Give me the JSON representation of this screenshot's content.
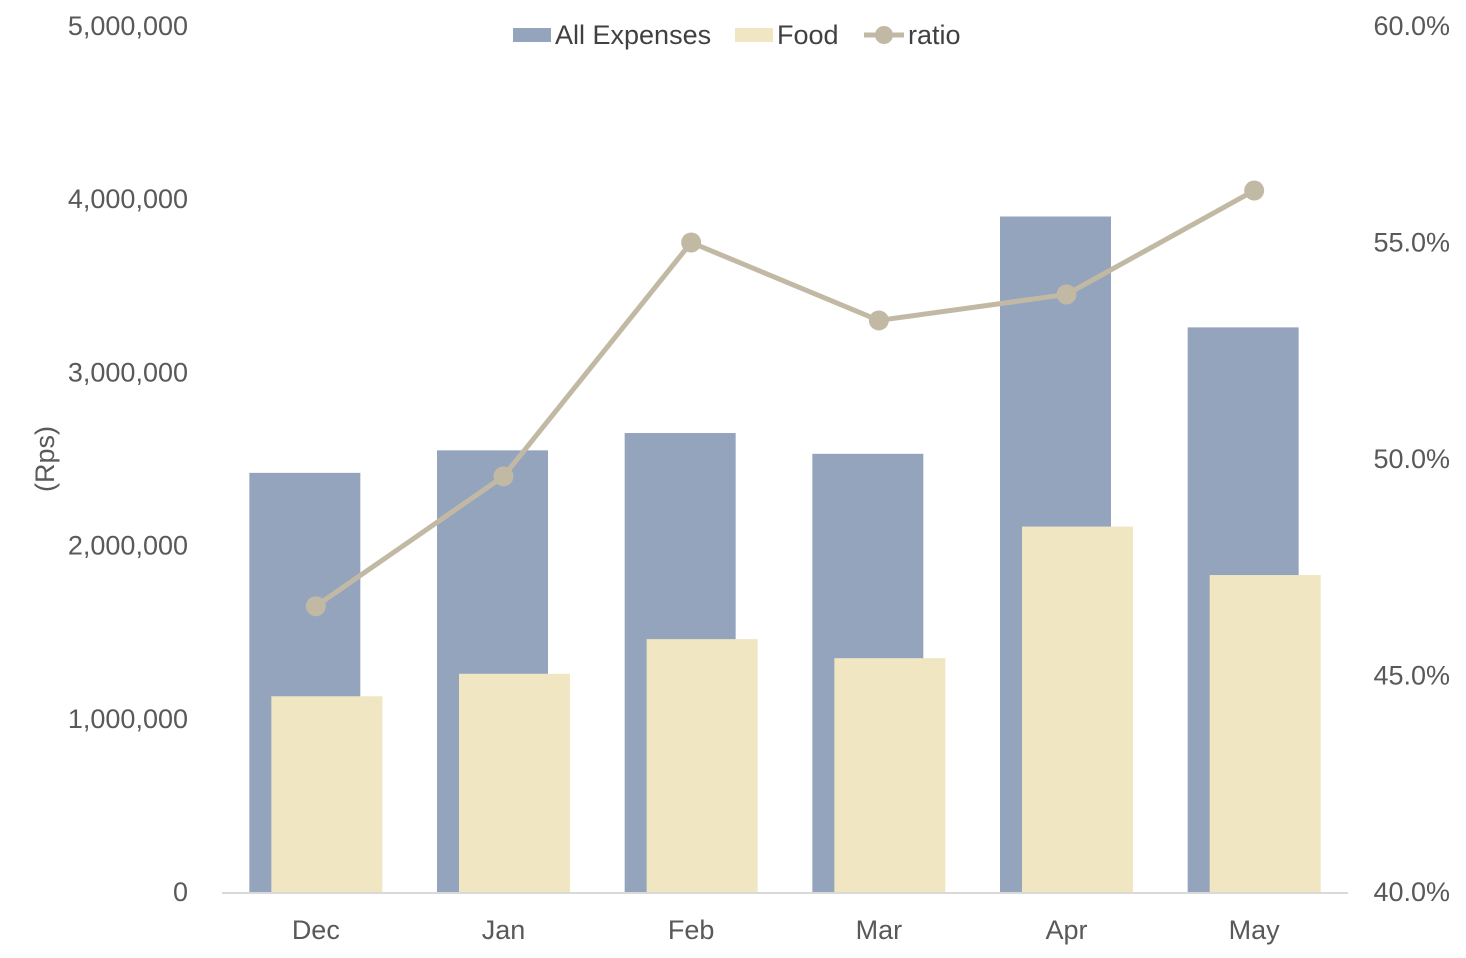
{
  "chart_data": {
    "type": "bar",
    "categories": [
      "Dec",
      "Jan",
      "Feb",
      "Mar",
      "Apr",
      "May"
    ],
    "series": [
      {
        "name": "All Expenses",
        "type": "bar",
        "axis": "left",
        "color": "#94a4bd",
        "values": [
          2420000,
          2550000,
          2650000,
          2530000,
          3900000,
          3260000
        ]
      },
      {
        "name": "Food",
        "type": "bar",
        "axis": "left",
        "color": "#f0e6c2",
        "values": [
          1130000,
          1260000,
          1460000,
          1350000,
          2110000,
          1830000
        ]
      },
      {
        "name": "ratio",
        "type": "line",
        "axis": "right",
        "color": "#c2b9a5",
        "values": [
          0.466,
          0.496,
          0.55,
          0.532,
          0.538,
          0.562
        ]
      }
    ],
    "ylabel": "(Rps)",
    "ylim": [
      0,
      5000000
    ],
    "y_ticks": [
      0,
      1000000,
      2000000,
      3000000,
      4000000,
      5000000
    ],
    "y_tick_labels": [
      "0",
      "1,000,000",
      "2,000,000",
      "3,000,000",
      "4,000,000",
      "5,000,000"
    ],
    "y2lim": [
      0.4,
      0.6
    ],
    "y2_ticks": [
      0.4,
      0.45,
      0.5,
      0.55,
      0.6
    ],
    "y2_tick_labels": [
      "40.0%",
      "45.0%",
      "50.0%",
      "55.0%",
      "60.0%"
    ],
    "legend_position": "top",
    "grid": false
  }
}
